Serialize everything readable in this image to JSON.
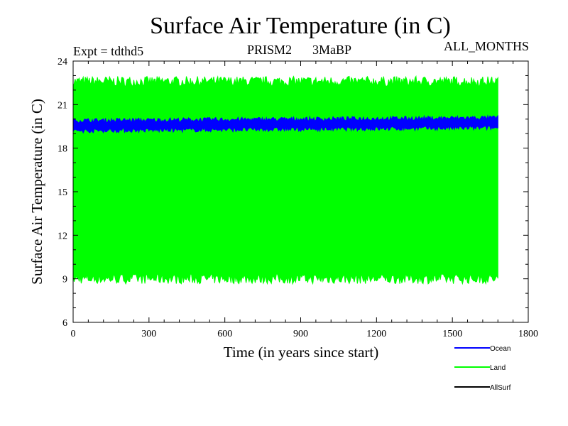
{
  "chart_data": {
    "type": "line",
    "title": "Surface Air Temperature (in C)",
    "experiment": "Expt = tdthd5",
    "center_label_1": "PRISM2",
    "center_label_2": "3MaBP",
    "season": "ALL_MONTHS",
    "xlabel": "Time (in years since start)",
    "ylabel": "Surface Air Temperature (in C)",
    "xlim": [
      0,
      1800
    ],
    "ylim": [
      6,
      24
    ],
    "x_ticks": [
      "0",
      "300",
      "600",
      "900",
      "1200",
      "1500",
      "1800"
    ],
    "y_ticks": [
      "6",
      "9",
      "12",
      "15",
      "18",
      "21",
      "24"
    ],
    "x_data_range": [
      0,
      1680
    ],
    "series": [
      {
        "name": "Land",
        "color": "#00ff00",
        "type": "band",
        "seasonal_low": 9.0,
        "seasonal_high": 22.6,
        "noise": 0.35
      },
      {
        "name": "Ocean",
        "color": "#0000ff",
        "type": "band",
        "seasonal_low": 19.2,
        "seasonal_high": 19.9,
        "trend_end_offset": 0.2,
        "noise": 0.15
      },
      {
        "name": "AllSurf",
        "color": "#000000",
        "type": "none"
      }
    ],
    "legend": [
      {
        "label": "Ocean",
        "color": "#0000ff"
      },
      {
        "label": "Land",
        "color": "#00ff00"
      },
      {
        "label": "AllSurf",
        "color": "#000000"
      }
    ],
    "legend_position": "bottom-right"
  }
}
